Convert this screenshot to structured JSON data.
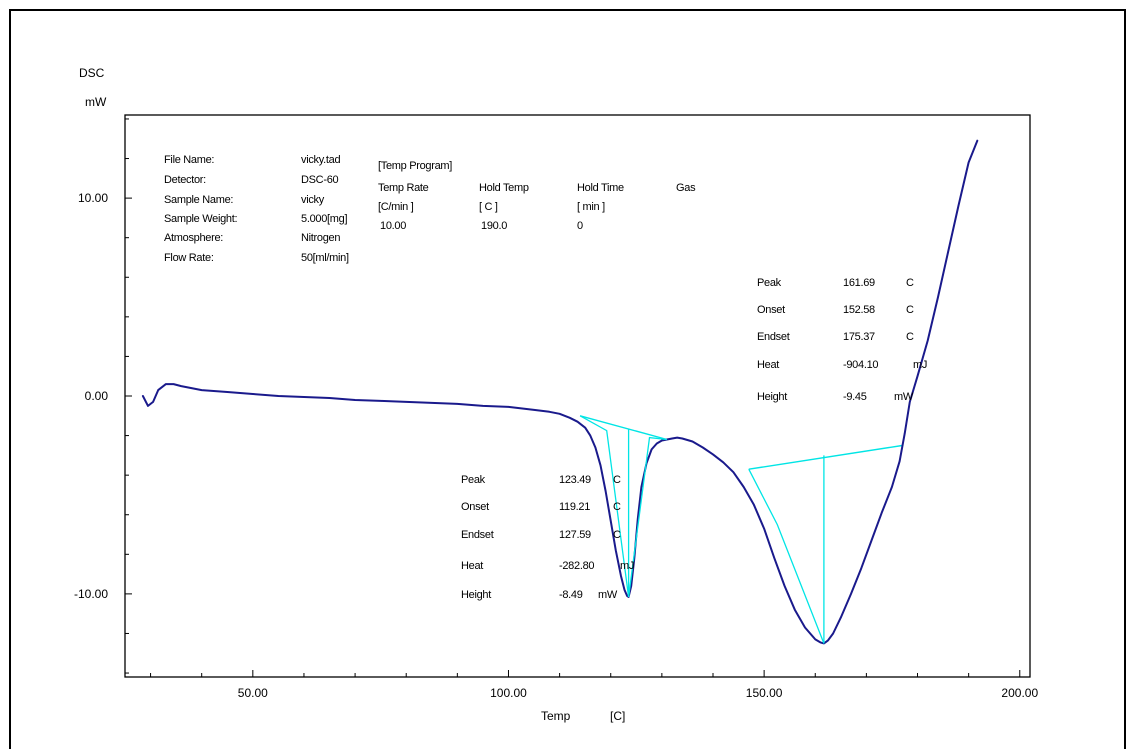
{
  "chart_data": {
    "type": "line",
    "ylabel": "DSC",
    "yunit": "mW",
    "xlabel": "Temp",
    "xunit": "[C]",
    "xlim": [
      25,
      202
    ],
    "ylim": [
      -14.2,
      14.2
    ],
    "x_ticks": [
      {
        "value": 50,
        "label": "50.00"
      },
      {
        "value": 100,
        "label": "100.00"
      },
      {
        "value": 150,
        "label": "150.00"
      },
      {
        "value": 200,
        "label": "200.00"
      }
    ],
    "y_ticks": [
      {
        "value": 10,
        "label": "10.00"
      },
      {
        "value": 0,
        "label": "0.00"
      },
      {
        "value": -10,
        "label": "-10.00"
      }
    ],
    "series": [
      {
        "color": "#1a1a8c",
        "x": [
          28.5,
          29.5,
          30.5,
          31.5,
          33,
          34.5,
          36,
          38,
          40,
          45,
          50,
          55,
          60,
          65,
          70,
          75,
          80,
          85,
          90,
          95,
          100,
          105,
          108,
          110,
          112,
          113.5,
          115,
          116,
          117,
          118,
          119,
          120,
          121,
          122,
          122.7,
          123.2,
          123.49,
          124,
          124.6,
          125.3,
          126,
          127,
          128,
          129,
          130,
          131,
          132,
          133,
          134,
          136,
          138,
          140,
          142,
          144,
          146,
          148,
          150,
          152,
          154,
          156,
          158,
          160,
          161,
          161.69,
          162.5,
          163.5,
          165,
          167,
          169,
          171,
          173,
          175,
          176.5,
          177.5,
          178.5,
          180,
          182,
          184,
          186,
          188,
          190,
          191.7
        ],
        "y": [
          0,
          -0.5,
          -0.3,
          0.3,
          0.6,
          0.6,
          0.5,
          0.4,
          0.3,
          0.2,
          0.1,
          0.0,
          -0.05,
          -0.1,
          -0.2,
          -0.25,
          -0.3,
          -0.35,
          -0.4,
          -0.5,
          -0.55,
          -0.7,
          -0.8,
          -0.9,
          -1.1,
          -1.3,
          -1.6,
          -2.0,
          -2.6,
          -3.5,
          -4.8,
          -6.3,
          -7.8,
          -9.1,
          -9.8,
          -10.1,
          -10.15,
          -9.6,
          -8.2,
          -6.2,
          -4.6,
          -3.4,
          -2.7,
          -2.4,
          -2.25,
          -2.2,
          -2.15,
          -2.1,
          -2.15,
          -2.3,
          -2.6,
          -2.95,
          -3.35,
          -3.85,
          -4.6,
          -5.5,
          -6.7,
          -8.2,
          -9.6,
          -10.8,
          -11.7,
          -12.3,
          -12.45,
          -12.5,
          -12.35,
          -12.0,
          -11.2,
          -10.0,
          -8.7,
          -7.3,
          -5.9,
          -4.6,
          -3.3,
          -1.9,
          -0.3,
          1.0,
          2.8,
          5.0,
          7.3,
          9.6,
          11.8,
          12.9
        ]
      }
    ],
    "baselines": [
      {
        "color": "#00e5e5",
        "x": [
          114,
          131
        ],
        "y": [
          -1.0,
          -2.2
        ]
      },
      {
        "color": "#00e5e5",
        "x": [
          147,
          177
        ],
        "y": [
          -3.7,
          -2.5
        ]
      }
    ],
    "peak_markers": [
      {
        "color": "#00e5e5",
        "x": [
          123.49,
          123.49
        ],
        "y": [
          -10.15,
          -1.69
        ]
      },
      {
        "color": "#00e5e5",
        "x": [
          161.69,
          161.69
        ],
        "y": [
          -12.5,
          -3.0
        ]
      },
      {
        "color": "#00e5e5",
        "x": [
          114,
          119.21,
          123.49
        ],
        "y": [
          -1.0,
          -1.75,
          -10.15
        ]
      },
      {
        "color": "#00e5e5",
        "x": [
          123.49,
          127.59,
          131
        ],
        "y": [
          -10.15,
          -2.1,
          -2.2
        ]
      },
      {
        "color": "#00e5e5",
        "x": [
          147,
          152.58,
          161.69
        ],
        "y": [
          -3.7,
          -6.5,
          -12.5
        ]
      }
    ],
    "annotations": {
      "file_info": [
        {
          "label": "File Name:",
          "value": "vicky.tad"
        },
        {
          "label": "Detector:",
          "value": "DSC-60"
        },
        {
          "label": "Sample Name:",
          "value": "vicky"
        },
        {
          "label": "Sample Weight:",
          "value": "5.000[mg]"
        },
        {
          "label": "Atmosphere:",
          "value": "Nitrogen"
        },
        {
          "label": "Flow Rate:",
          "value": "50[ml/min]"
        }
      ],
      "temp_program": {
        "title": "[Temp Program]",
        "headers": [
          "Temp Rate",
          "Hold Temp",
          "Hold Time",
          "Gas"
        ],
        "units": [
          "[C/min ]",
          "[  C  ]",
          "[  min  ]",
          ""
        ],
        "values": [
          "10.00",
          "190.0",
          "0",
          ""
        ]
      },
      "peak1": [
        {
          "label": "Peak",
          "value": "123.49",
          "unit": "C"
        },
        {
          "label": "Onset",
          "value": "119.21",
          "unit": "C"
        },
        {
          "label": "Endset",
          "value": "127.59",
          "unit": "C"
        },
        {
          "label": "Heat",
          "value": "-282.80",
          "unit": "mJ"
        },
        {
          "label": "Height",
          "value": "-8.49",
          "unit": "mW"
        }
      ],
      "peak2": [
        {
          "label": "Peak",
          "value": "161.69",
          "unit": "C"
        },
        {
          "label": "Onset",
          "value": "152.58",
          "unit": "C"
        },
        {
          "label": "Endset",
          "value": "175.37",
          "unit": "C"
        },
        {
          "label": "Heat",
          "value": "-904.10",
          "unit": "mJ"
        },
        {
          "label": "Height",
          "value": "-9.45",
          "unit": "mW"
        }
      ]
    }
  }
}
